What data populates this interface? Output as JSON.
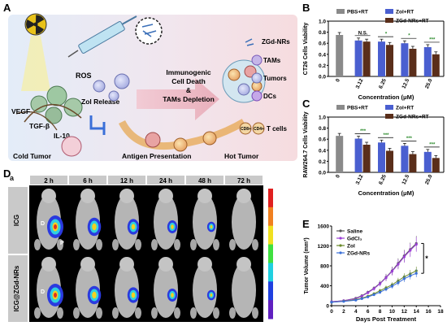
{
  "panels": {
    "A": "A",
    "B": "B",
    "C": "C",
    "D": "D",
    "E": "E"
  },
  "schematic": {
    "ros": "ROS",
    "vegf": "VEGF",
    "tgfb": "TGF-β",
    "il10": "IL-10",
    "zol_release": "Zol Release",
    "immunogenic_lines": [
      "Immunogenic",
      "Cell Death",
      "&",
      "TAMs Depletion"
    ],
    "antigen_presentation": "Antigen Presentation",
    "cold_tumor": "Cold Tumor",
    "hot_tumor": "Hot Tumor",
    "legend": [
      "ZGd-NRs",
      "TAMs",
      "Tumors",
      "DCs",
      "T cells"
    ],
    "cd8": "CD8+",
    "cd4": "CD4+"
  },
  "imaging": {
    "row_letter": "a",
    "time_labels": [
      "2 h",
      "6 h",
      "12 h",
      "24 h",
      "48 h",
      "72 h"
    ],
    "row_labels": [
      "ICG",
      "ICG@ZGd-NRs"
    ],
    "mark_d": "D",
    "mark_p": "P",
    "colors": {
      "grid_bg": "#000000",
      "header_bg": "#c9c9c9"
    }
  },
  "chart_data": [
    {
      "id": "B",
      "type": "bar",
      "ylabel": "CT26 Cells Viability",
      "xlabel": "Concentration (μM)",
      "categories": [
        "0",
        "3.12",
        "6.25",
        "12.5",
        "25.0"
      ],
      "ylim": [
        0.0,
        1.0
      ],
      "yticks": [
        "0.0",
        "0.2",
        "0.4",
        "0.6",
        "0.8",
        "1.0"
      ],
      "series": [
        {
          "name": "PBS+RT",
          "values": [
            0.75,
            null,
            null,
            null,
            null
          ],
          "color": "#8a8a8a"
        },
        {
          "name": "Zol+RT",
          "values": [
            null,
            0.65,
            0.63,
            0.6,
            0.53
          ],
          "color": "#4a5fd0"
        },
        {
          "name": "ZGd-NRs+RT",
          "values": [
            null,
            0.63,
            0.57,
            0.5,
            0.4
          ],
          "color": "#5a2e1a"
        }
      ],
      "significance": [
        "N.S.",
        "*",
        "*",
        "***"
      ]
    },
    {
      "id": "C",
      "type": "bar",
      "ylabel": "RAW264.7 Cells Viability",
      "xlabel": "Concentration (μM)",
      "categories": [
        "0",
        "3.12",
        "6.25",
        "12.5",
        "25.0"
      ],
      "ylim": [
        0.0,
        1.0
      ],
      "yticks": [
        "0.0",
        "0.2",
        "0.4",
        "0.6",
        "0.8",
        "1.0"
      ],
      "series": [
        {
          "name": "PBS+RT",
          "values": [
            0.66,
            null,
            null,
            null,
            null
          ],
          "color": "#8a8a8a"
        },
        {
          "name": "Zol+RT",
          "values": [
            null,
            0.61,
            0.54,
            0.48,
            0.37
          ],
          "color": "#4a5fd0"
        },
        {
          "name": "ZGd-NRs+RT",
          "values": [
            null,
            0.5,
            0.39,
            0.33,
            0.26
          ],
          "color": "#5a2e1a"
        }
      ],
      "significance": [
        "***",
        "***",
        "***",
        "***"
      ]
    },
    {
      "id": "E",
      "type": "line",
      "ylabel": "Tumor Volume (mm³)",
      "xlabel": "Days Post Treatment",
      "x": [
        0,
        2,
        4,
        5,
        6,
        7,
        8,
        9,
        10,
        11,
        12,
        13,
        14
      ],
      "xticks": [
        "0",
        "2",
        "4",
        "6",
        "8",
        "10",
        "12",
        "14",
        "16",
        "18"
      ],
      "ylim": [
        0,
        1600
      ],
      "yticks": [
        "0",
        "400",
        "800",
        "1200",
        "1600"
      ],
      "series": [
        {
          "name": "Saline",
          "values": [
            80,
            100,
            150,
            200,
            270,
            350,
            450,
            570,
            700,
            850,
            1000,
            1130,
            1250
          ],
          "color": "#555555"
        },
        {
          "name": "GdCl₃",
          "values": [
            80,
            100,
            140,
            190,
            260,
            340,
            440,
            560,
            690,
            830,
            980,
            1110,
            1230
          ],
          "color": "#9b3fd6"
        },
        {
          "name": "Zol",
          "values": [
            70,
            90,
            120,
            150,
            190,
            240,
            300,
            360,
            420,
            500,
            580,
            640,
            700
          ],
          "color": "#6a8a2a"
        },
        {
          "name": "ZGd-NRs",
          "values": [
            70,
            85,
            110,
            140,
            175,
            220,
            270,
            330,
            390,
            460,
            540,
            600,
            650
          ],
          "color": "#3a6fd8"
        }
      ],
      "significance": "*"
    }
  ]
}
